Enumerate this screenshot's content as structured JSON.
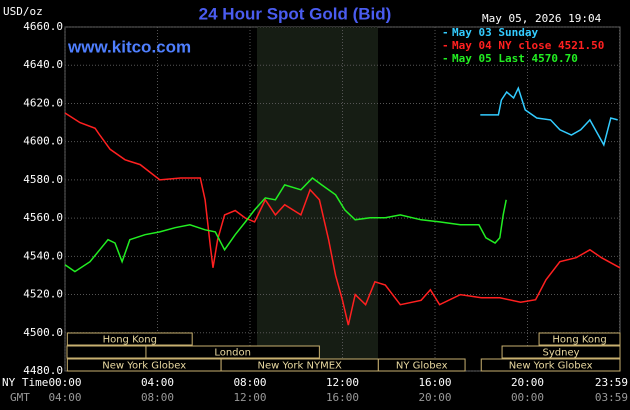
{
  "chart_data": {
    "type": "line",
    "title": "24 Hour Spot Gold (Bid)",
    "y_unit": "USD/oz",
    "watermark": "www.kitco.com",
    "timestamp": "May 05, 2026 19:04",
    "x_axis_labels": [
      "NY Time",
      "GMT"
    ],
    "xlim": [
      0,
      24
    ],
    "ylim": [
      4480,
      4660
    ],
    "grid": true,
    "xticks": [
      {
        "value": 0,
        "label": "00:00"
      },
      {
        "value": 4,
        "label": "04:00"
      },
      {
        "value": 8,
        "label": "08:00"
      },
      {
        "value": 12,
        "label": "12:00"
      },
      {
        "value": 16,
        "label": "16:00"
      },
      {
        "value": 20,
        "label": "20:00"
      },
      {
        "value": 23.98,
        "label": "23:59"
      }
    ],
    "gmt_ticks": [
      {
        "value": 0,
        "label": "04:00"
      },
      {
        "value": 4,
        "label": "08:00"
      },
      {
        "value": 8,
        "label": "12:00"
      },
      {
        "value": 12,
        "label": "16:00"
      },
      {
        "value": 16,
        "label": "20:00"
      },
      {
        "value": 20,
        "label": "00:00"
      },
      {
        "value": 23.98,
        "label": "03:59"
      }
    ],
    "yticks": [
      {
        "value": 4480,
        "label": "4480.0"
      },
      {
        "value": 4500,
        "label": "4500.0"
      },
      {
        "value": 4520,
        "label": "4520.0"
      },
      {
        "value": 4540,
        "label": "4540.0"
      },
      {
        "value": 4560,
        "label": "4560.0"
      },
      {
        "value": 4580,
        "label": "4580.0"
      },
      {
        "value": 4600,
        "label": "4600.0"
      },
      {
        "value": 4620,
        "label": "4620.0"
      },
      {
        "value": 4640,
        "label": "4640.0"
      },
      {
        "value": 4660,
        "label": "4660.0"
      }
    ],
    "series": [
      {
        "name": "May 03 Sunday",
        "color": "#33ccff",
        "x": [
          17.96,
          18.74,
          18.87,
          19.1,
          19.4,
          19.6,
          19.9,
          20.4,
          21.0,
          21.4,
          21.9,
          22.3,
          22.7,
          23.3,
          23.6,
          23.9
        ],
        "values": [
          4614,
          4614,
          4621.8,
          4626,
          4622.9,
          4628,
          4616.6,
          4612.4,
          4611.4,
          4606.2,
          4603.5,
          4606.2,
          4611.4,
          4598.3,
          4612.4,
          4611.4
        ]
      },
      {
        "name": "May 04 NY close 4521.50",
        "color": "#ff2020",
        "x": [
          0,
          0.65,
          1.3,
          1.5,
          1.95,
          2.6,
          3.25,
          4.1,
          5.0,
          5.85,
          6.06,
          6.28,
          6.4,
          6.6,
          6.9,
          7.36,
          7.8,
          8.2,
          8.66,
          9.1,
          9.5,
          10.2,
          10.6,
          11.0,
          11.4,
          11.7,
          12.0,
          12.25,
          12.55,
          13.0,
          13.4,
          13.85,
          14.5,
          15.4,
          15.8,
          16.2,
          17.1,
          18.0,
          18.8,
          19.7,
          20.35,
          20.8,
          21.4,
          22.1,
          22.7,
          23.2,
          24.0
        ],
        "values": [
          4615,
          4610,
          4607,
          4603.5,
          4596,
          4590.5,
          4588,
          4580,
          4581,
          4581,
          4569.6,
          4546,
          4534,
          4548.7,
          4561.7,
          4564,
          4560,
          4558,
          4569.6,
          4561.7,
          4567,
          4561.7,
          4574.8,
          4569.6,
          4548.7,
          4530,
          4517,
          4504,
          4520,
          4514.7,
          4526.7,
          4525,
          4514.7,
          4517,
          4522.5,
          4514.7,
          4520,
          4518.3,
          4518.3,
          4516,
          4517.3,
          4527.7,
          4537.2,
          4539.3,
          4543.4,
          4539.3,
          4534
        ]
      },
      {
        "name": "May 05 Last 4570.70",
        "color": "#22ee22",
        "x": [
          0,
          0.43,
          1.08,
          1.5,
          1.86,
          2.16,
          2.47,
          2.8,
          3.46,
          4.1,
          4.76,
          5.4,
          6.06,
          6.5,
          6.9,
          7.36,
          7.8,
          8.2,
          8.66,
          9.1,
          9.5,
          10.2,
          10.7,
          11.1,
          11.7,
          12.1,
          12.55,
          13.2,
          13.85,
          14.5,
          15.4,
          16.2,
          17.1,
          17.9,
          18.2,
          18.6,
          18.8,
          18.95,
          19.08
        ],
        "values": [
          4535.6,
          4532,
          4537.2,
          4543.4,
          4548.7,
          4547,
          4537.2,
          4548.7,
          4551.3,
          4552.8,
          4555,
          4556.5,
          4553.9,
          4552.8,
          4543.4,
          4551.3,
          4558,
          4564.3,
          4570.6,
          4569.6,
          4577.4,
          4574.8,
          4581,
          4577.4,
          4572.2,
          4564.3,
          4559.1,
          4560.2,
          4560.2,
          4561.7,
          4559.1,
          4558,
          4556.5,
          4556.5,
          4549.7,
          4547,
          4549.7,
          4561.7,
          4569.6
        ]
      }
    ],
    "sessions": [
      {
        "label": "Hong Kong",
        "start": 0.1,
        "end": 5.5,
        "row": 0
      },
      {
        "label": "London",
        "start": 3.5,
        "end": 11.0,
        "row": 1
      },
      {
        "label": "New York Globex",
        "start": 0.1,
        "end": 6.75,
        "row": 2
      },
      {
        "label": "New York NYMEX",
        "start": 6.75,
        "end": 13.55,
        "row": 2
      },
      {
        "label": "NY Globex",
        "start": 13.55,
        "end": 17.3,
        "row": 2
      },
      {
        "label": "Hong Kong",
        "start": 20.5,
        "end": 24,
        "row": 0
      },
      {
        "label": "Sydney",
        "start": 18.9,
        "end": 24,
        "row": 1
      },
      {
        "label": "New York Globex",
        "start": 18.0,
        "end": 24,
        "row": 2
      }
    ]
  }
}
